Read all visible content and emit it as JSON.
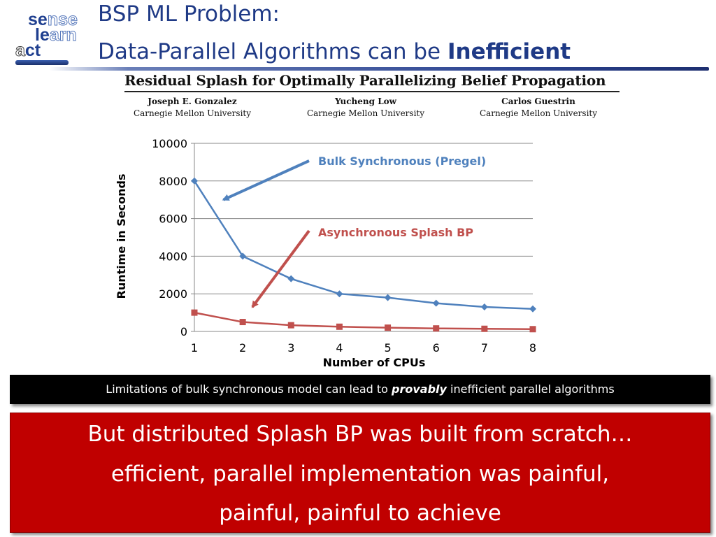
{
  "logo": {
    "row1_a": "se",
    "row1_b": "nse",
    "row2_a": "le",
    "row2_b": "arn",
    "row3_a": "a",
    "row3_b": "ct"
  },
  "title": {
    "line1": "BSP ML Problem:",
    "line2_prefix": "Data-Parallel Algorithms can be ",
    "line2_bold": "Inefficient"
  },
  "paper": {
    "title": "Residual Splash for Optimally Parallelizing Belief Propagation",
    "authors": [
      {
        "name": "Joseph E. Gonzalez",
        "affiliation": "Carnegie Mellon University"
      },
      {
        "name": "Yucheng Low",
        "affiliation": "Carnegie Mellon University"
      },
      {
        "name": "Carlos Guestrin",
        "affiliation": "Carnegie Mellon University"
      }
    ]
  },
  "chart_data": {
    "type": "line",
    "x": [
      1,
      2,
      3,
      4,
      5,
      6,
      7,
      8
    ],
    "series": [
      {
        "name": "Bulk Synchronous (Pregel)",
        "color": "#4f81bd",
        "marker": "diamond",
        "values": [
          8000,
          4000,
          2800,
          2000,
          1800,
          1500,
          1300,
          1200
        ]
      },
      {
        "name": "Asynchronous Splash BP",
        "color": "#c0504d",
        "marker": "square",
        "values": [
          1000,
          500,
          330,
          250,
          200,
          160,
          140,
          120
        ]
      }
    ],
    "xlabel": "Number of CPUs",
    "ylabel": "Runtime in Seconds",
    "ylim": [
      0,
      10000
    ],
    "yticks": [
      0,
      2000,
      4000,
      6000,
      8000,
      10000
    ],
    "xticks": [
      "1",
      "2",
      "3",
      "4",
      "5",
      "6",
      "7",
      "8"
    ],
    "grid": true,
    "annotations": [
      {
        "text": "Bulk Synchronous (Pregel)",
        "color": "#4f81bd",
        "points_to_x": 1.6,
        "points_to_y": 7000
      },
      {
        "text": "Asynchronous Splash BP",
        "color": "#c0504d",
        "points_to_x": 2.2,
        "points_to_y": 1300
      }
    ]
  },
  "banner": {
    "prefix": "Limitations of bulk synchronous model can lead to ",
    "emphasis": "provably",
    "suffix": " inefficient parallel algorithms"
  },
  "callout": {
    "line1": "But distributed Splash BP was built from scratch…",
    "line2": "efficient, parallel implementation was painful,",
    "line3": "painful, painful to achieve"
  }
}
